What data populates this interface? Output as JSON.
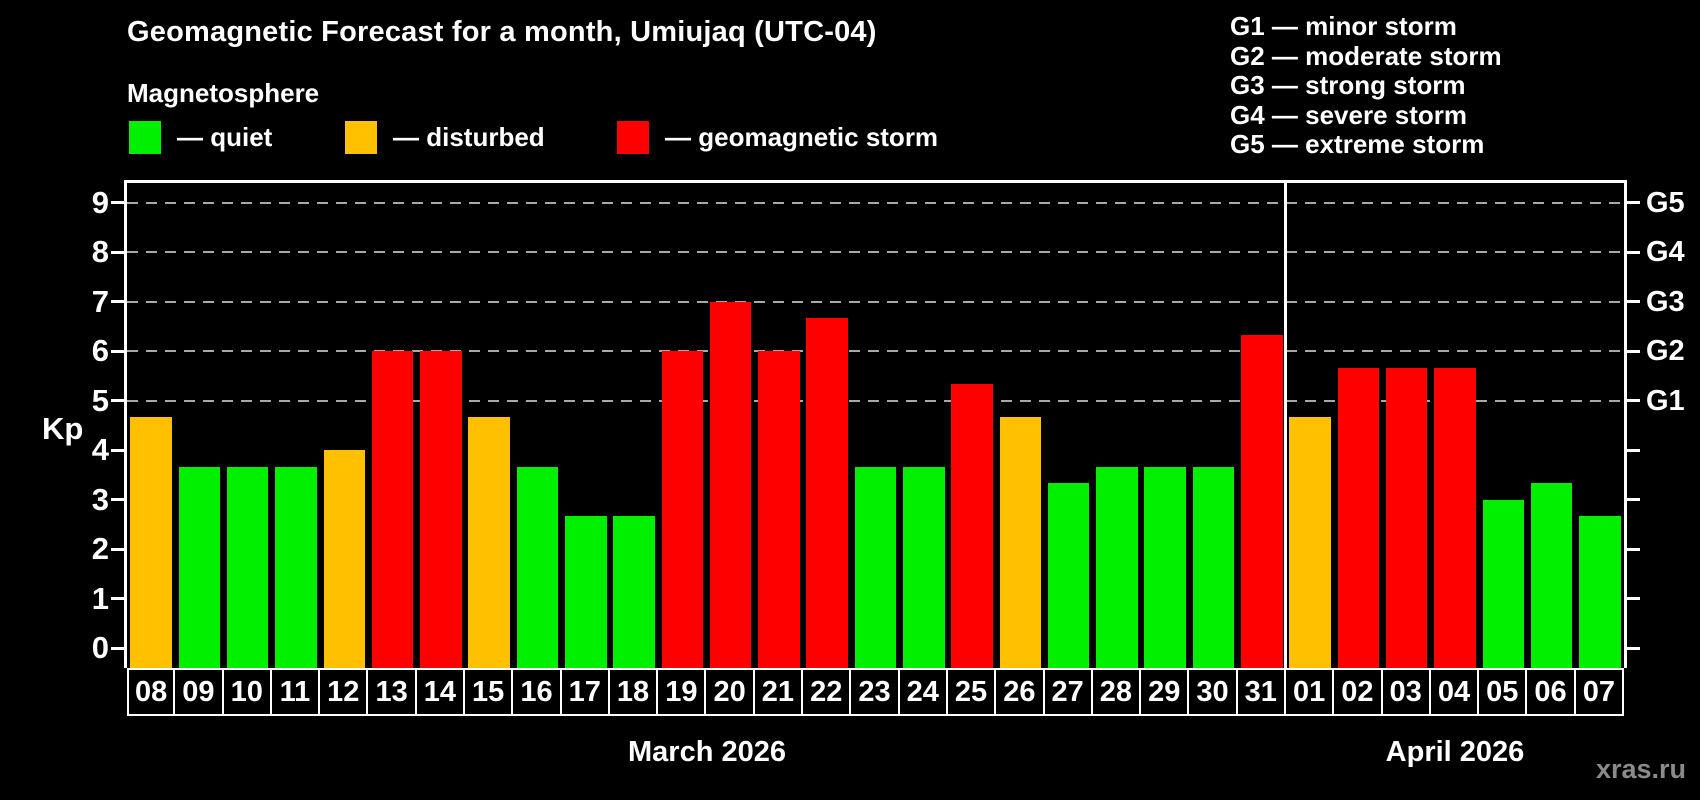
{
  "title": "Geomagnetic Forecast for a month, Umiujaq (UTC-04)",
  "subtitle": "Magnetosphere",
  "watermark": "xras.ru",
  "colors": {
    "quiet": "#00f000",
    "disturbed": "#ffc000",
    "storm": "#ff0000",
    "background": "#000000",
    "grid": "#a8a8a8",
    "frame": "#ffffff",
    "watermark_text": "#8b8b8b"
  },
  "legend": {
    "quiet_label": "— quiet",
    "disturbed_label": "— disturbed",
    "storm_label": "— geomagnetic storm"
  },
  "g_legend": [
    "G1 — minor storm",
    "G2 — moderate storm",
    "G3 — strong storm",
    "G4 — severe storm",
    "G5 — extreme storm"
  ],
  "axis": {
    "kp_label": "Kp",
    "left_ticks": [
      0,
      1,
      2,
      3,
      4,
      5,
      6,
      7,
      8,
      9
    ],
    "right_labels": [
      {
        "kp": 5,
        "label": "G1"
      },
      {
        "kp": 6,
        "label": "G2"
      },
      {
        "kp": 7,
        "label": "G3"
      },
      {
        "kp": 8,
        "label": "G4"
      },
      {
        "kp": 9,
        "label": "G5"
      }
    ]
  },
  "chart_data": {
    "type": "bar",
    "title": "Geomagnetic Forecast for a month, Umiujaq (UTC-04)",
    "xlabel": "",
    "ylabel": "Kp",
    "ylim": [
      0,
      9
    ],
    "grid": "dashed horizontal at Kp 5-9 only",
    "gridlines_at": [
      5,
      6,
      7,
      8,
      9
    ],
    "legend_position": "top-left",
    "g_scale": {
      "G1": 5,
      "G2": 6,
      "G3": 7,
      "G4": 8,
      "G5": 9
    },
    "status_color_rule": "quiet: Kp < 4 (green), disturbed: 4 <= Kp < 5 (orange), storm: Kp >= 5 (red)",
    "series": [
      {
        "month": "March 2026",
        "days": [
          "08",
          "09",
          "10",
          "11",
          "12",
          "13",
          "14",
          "15",
          "16",
          "17",
          "18",
          "19",
          "20",
          "21",
          "22",
          "23",
          "24",
          "25",
          "26",
          "27",
          "28",
          "29",
          "30",
          "31"
        ],
        "values": [
          4.67,
          3.67,
          3.67,
          3.67,
          4.0,
          6.0,
          6.0,
          4.67,
          3.67,
          2.67,
          2.67,
          6.0,
          7.0,
          6.0,
          6.67,
          3.67,
          3.67,
          5.33,
          4.67,
          3.33,
          3.67,
          3.67,
          3.67,
          6.33
        ],
        "status": [
          "disturbed",
          "quiet",
          "quiet",
          "quiet",
          "disturbed",
          "storm",
          "storm",
          "disturbed",
          "quiet",
          "quiet",
          "quiet",
          "storm",
          "storm",
          "storm",
          "storm",
          "quiet",
          "quiet",
          "storm",
          "disturbed",
          "quiet",
          "quiet",
          "quiet",
          "quiet",
          "storm"
        ]
      },
      {
        "month": "April 2026",
        "days": [
          "01",
          "02",
          "03",
          "04",
          "05",
          "06",
          "07"
        ],
        "values": [
          4.67,
          5.67,
          5.67,
          5.67,
          3.0,
          3.33,
          2.67
        ],
        "status": [
          "disturbed",
          "storm",
          "storm",
          "storm",
          "quiet",
          "quiet",
          "quiet"
        ]
      }
    ]
  }
}
